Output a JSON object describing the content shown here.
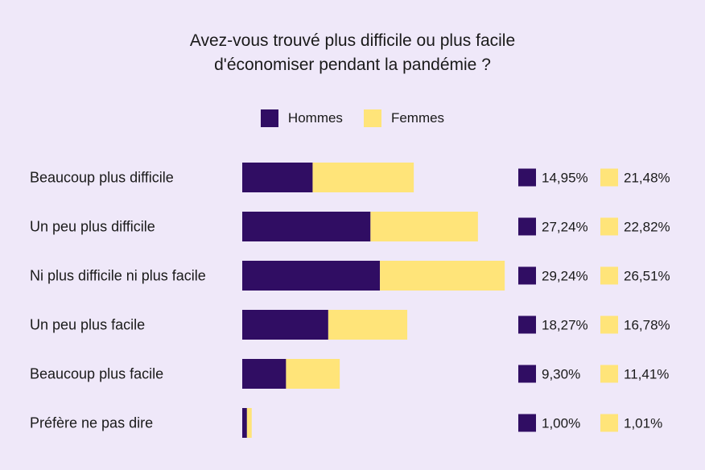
{
  "chart_data": {
    "type": "bar",
    "stacked": true,
    "orientation": "horizontal",
    "title": [
      "Avez-vous trouvé plus difficile ou plus facile",
      "d'économiser pendant la pandémie ?"
    ],
    "categories": [
      "Beaucoup plus difficile",
      "Un peu plus difficile",
      "Ni plus difficile ni plus facile",
      "Un peu plus facile",
      "Beaucoup plus facile",
      "Préfère ne pas dire"
    ],
    "series": [
      {
        "name": "Hommes",
        "color": "#300d63",
        "values": [
          14.95,
          27.24,
          29.24,
          18.27,
          9.3,
          1.0
        ],
        "labels": [
          "14,95%",
          "27,24%",
          "29,24%",
          "18,27%",
          "9,30%",
          "1,00%"
        ]
      },
      {
        "name": "Femmes",
        "color": "#ffe479",
        "values": [
          21.48,
          22.82,
          26.51,
          16.78,
          11.41,
          1.01
        ],
        "labels": [
          "21,48%",
          "22,82%",
          "26,51%",
          "16,78%",
          "11,41%",
          "1,01%"
        ]
      }
    ],
    "legend_position": "top-center",
    "grid": false,
    "xlabel": "",
    "ylabel": ""
  }
}
